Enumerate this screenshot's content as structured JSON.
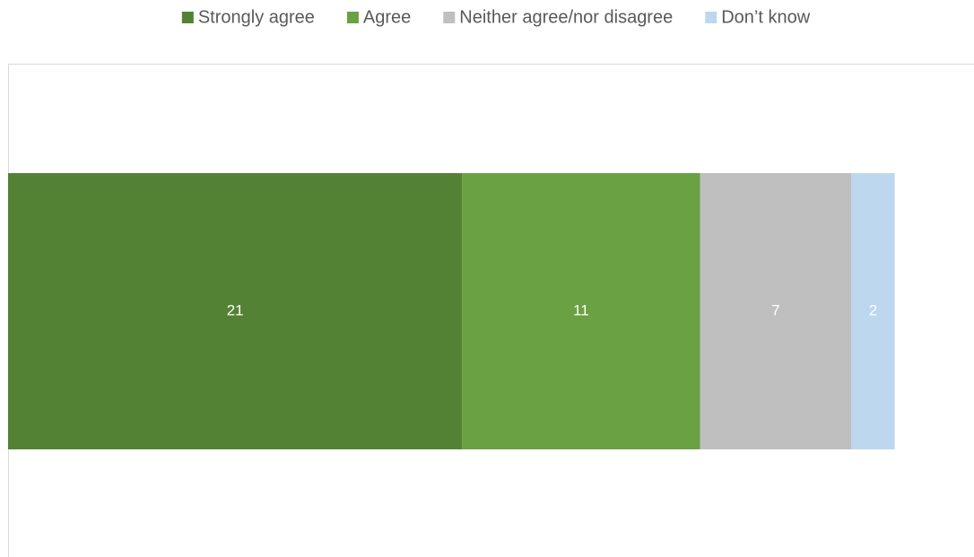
{
  "chart_data": {
    "type": "stacked-bar",
    "orientation": "horizontal",
    "categories": [
      null
    ],
    "series": [
      {
        "name": "Strongly agree",
        "color": "#548235",
        "values": [
          21
        ]
      },
      {
        "name": "Agree",
        "color": "#6aa143",
        "values": [
          11
        ]
      },
      {
        "name": "Neither agree/nor disagree",
        "color": "#bfbfbf",
        "values": [
          7
        ]
      },
      {
        "name": "Don’t know",
        "color": "#bdd7ee",
        "values": [
          2
        ]
      }
    ],
    "xlim": [
      0,
      45
    ],
    "legend": "top"
  }
}
